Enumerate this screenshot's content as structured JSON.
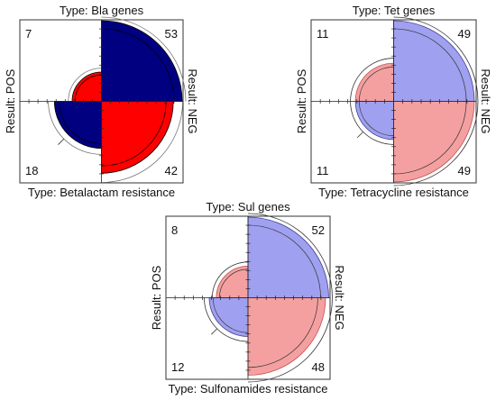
{
  "colors": {
    "frame": "#333333",
    "bla_pos": "#ff0000",
    "bla_neg": "#000080",
    "pale_pos": "#f4a0a0",
    "pale_neg": "#a0a0f0",
    "pale_pos_stroke": "#c05050",
    "pale_neg_stroke": "#404090"
  },
  "chart_data": [
    {
      "type": "fourfold",
      "title": "Type: Bla genes",
      "bottom_label": "Type: Betalactam resistance",
      "left_label": "Result: POS",
      "right_label": "Result: NEG",
      "counts": {
        "top_left": 7,
        "top_right": 53,
        "bottom_left": 18,
        "bottom_right": 42
      },
      "palette": "strong"
    },
    {
      "type": "fourfold",
      "title": "Type: Tet genes",
      "bottom_label": "Type: Tetracycline resistance",
      "left_label": "Result: POS",
      "right_label": "Result: NEG",
      "counts": {
        "top_left": 11,
        "top_right": 49,
        "bottom_left": 11,
        "bottom_right": 49
      },
      "palette": "pale"
    },
    {
      "type": "fourfold",
      "title": "Type: Sul genes",
      "bottom_label": "Type: Sulfonamides resistance",
      "left_label": "Result: POS",
      "right_label": "Result: NEG",
      "counts": {
        "top_left": 8,
        "top_right": 52,
        "bottom_left": 12,
        "bottom_right": 48
      },
      "palette": "pale"
    }
  ]
}
